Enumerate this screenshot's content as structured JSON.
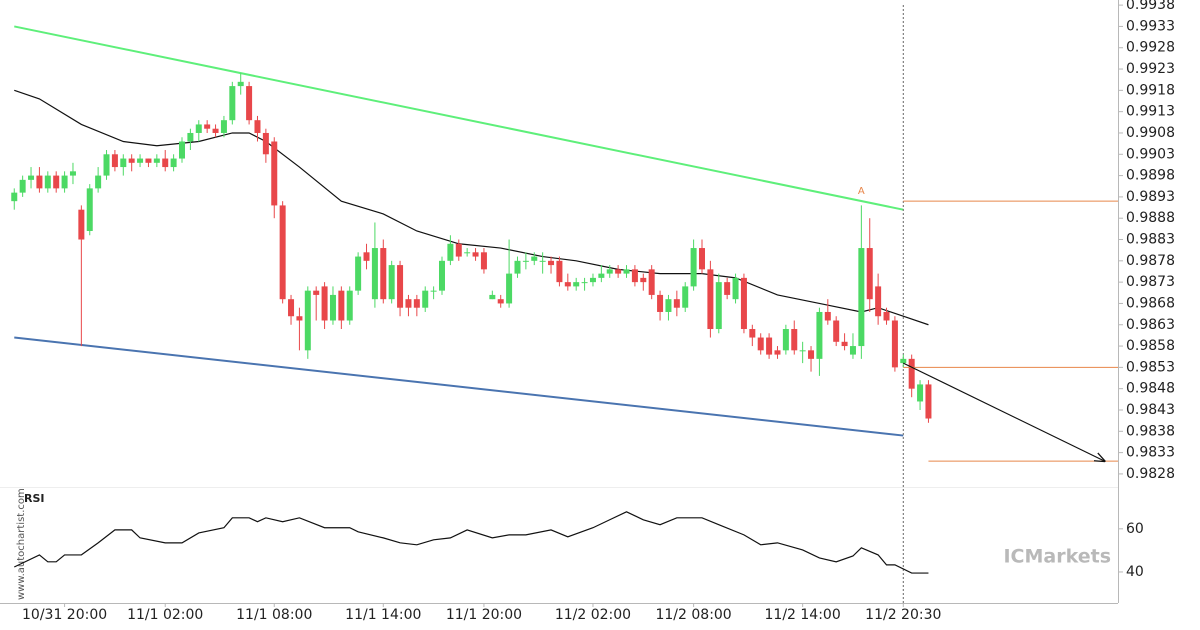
{
  "chart_data": [
    {
      "type": "candlestick",
      "xlim": [
        -1.7,
        131.6
      ],
      "ylim": [
        0.98254,
        0.99392
      ],
      "yticks": [
        0.9938,
        0.9933,
        0.9928,
        0.9923,
        0.9918,
        0.9913,
        0.9908,
        0.9903,
        0.9898,
        0.9893,
        0.9888,
        0.9883,
        0.9878,
        0.9873,
        0.9868,
        0.9863,
        0.9858,
        0.9853,
        0.9848,
        0.9843,
        0.9838,
        0.9833,
        0.9828
      ],
      "up_color": "#4cd964",
      "down_color": "#e8474a",
      "open": [
        0.9892,
        0.9894,
        0.9897,
        0.9898,
        0.9895,
        0.9898,
        0.9895,
        0.9898,
        0.989,
        0.9885,
        0.9895,
        0.9898,
        0.9903,
        0.99,
        0.9902,
        0.9901,
        0.9902,
        0.9901,
        0.9902,
        0.99,
        0.9902,
        0.9906,
        0.9908,
        0.991,
        0.9909,
        0.9908,
        0.9911,
        0.9919,
        0.9919,
        0.9911,
        0.9908,
        0.9906,
        0.9891,
        0.9869,
        0.9865,
        0.9857,
        0.9871,
        0.9872,
        0.9864,
        0.9871,
        0.9864,
        0.9871,
        0.988,
        0.9869,
        0.9881,
        0.9869,
        0.9877,
        0.9869,
        0.9869,
        0.9867,
        0.9871,
        0.9871,
        0.9878,
        0.9882,
        0.988,
        0.988,
        0.988,
        0.9869,
        0.9869,
        0.9868,
        0.9875,
        0.9878,
        0.9878,
        0.9878,
        0.9878,
        0.9878,
        0.9873,
        0.9872,
        0.9873,
        0.9873,
        0.9874,
        0.9875,
        0.9876,
        0.9875,
        0.9876,
        0.9874,
        0.9876,
        0.987,
        0.9866,
        0.9869,
        0.9867,
        0.9872,
        0.9881,
        0.9876,
        0.9862,
        0.9873,
        0.9869,
        0.9874,
        0.9862,
        0.986,
        0.986,
        0.9857,
        0.9857,
        0.9862,
        0.9857,
        0.9857,
        0.9855,
        0.9866,
        0.9864,
        0.9859,
        0.9856,
        0.9858,
        0.9881,
        0.9872,
        0.9866,
        0.9864,
        0.9854,
        0.9855,
        0.9845,
        0.9849
      ],
      "high": [
        0.9895,
        0.9898,
        0.99,
        0.99,
        0.9899,
        0.9899,
        0.9899,
        0.9901,
        0.9891,
        0.9896,
        0.99,
        0.9904,
        0.9904,
        0.9903,
        0.9903,
        0.9903,
        0.9902,
        0.9903,
        0.9904,
        0.9903,
        0.9907,
        0.9909,
        0.9911,
        0.9911,
        0.991,
        0.9912,
        0.992,
        0.9922,
        0.992,
        0.9912,
        0.9909,
        0.9907,
        0.9892,
        0.987,
        0.9867,
        0.9872,
        0.9872,
        0.9873,
        0.9872,
        0.9872,
        0.9872,
        0.988,
        0.9882,
        0.9887,
        0.9883,
        0.9878,
        0.9878,
        0.987,
        0.987,
        0.9872,
        0.9872,
        0.9879,
        0.9884,
        0.9883,
        0.9881,
        0.9881,
        0.9881,
        0.9871,
        0.987,
        0.9883,
        0.9879,
        0.988,
        0.988,
        0.988,
        0.9879,
        0.9879,
        0.9875,
        0.9874,
        0.9874,
        0.9875,
        0.9877,
        0.9877,
        0.9877,
        0.9877,
        0.9877,
        0.9875,
        0.9877,
        0.9871,
        0.987,
        0.9871,
        0.9873,
        0.9883,
        0.9883,
        0.9878,
        0.9875,
        0.9874,
        0.9875,
        0.9875,
        0.9863,
        0.9861,
        0.9861,
        0.9858,
        0.9863,
        0.9864,
        0.9859,
        0.9858,
        0.9867,
        0.9869,
        0.9865,
        0.9861,
        0.9861,
        0.9891,
        0.9888,
        0.9875,
        0.9867,
        0.9865,
        0.9856,
        0.9856,
        0.985,
        0.985
      ],
      "low": [
        0.989,
        0.9893,
        0.9895,
        0.9894,
        0.9894,
        0.9894,
        0.9894,
        0.9896,
        0.9858,
        0.9884,
        0.9894,
        0.9897,
        0.9899,
        0.9898,
        0.9899,
        0.99,
        0.99,
        0.99,
        0.9899,
        0.9899,
        0.9901,
        0.9904,
        0.9906,
        0.9908,
        0.9907,
        0.9907,
        0.991,
        0.9917,
        0.991,
        0.9906,
        0.9901,
        0.9888,
        0.9868,
        0.9863,
        0.9857,
        0.9855,
        0.9864,
        0.9862,
        0.9863,
        0.9862,
        0.9863,
        0.987,
        0.9876,
        0.9867,
        0.9868,
        0.9868,
        0.9865,
        0.9865,
        0.9865,
        0.9866,
        0.9869,
        0.987,
        0.9877,
        0.9878,
        0.9879,
        0.9878,
        0.9875,
        0.9869,
        0.9867,
        0.9867,
        0.9874,
        0.9876,
        0.9877,
        0.9875,
        0.9875,
        0.9872,
        0.9871,
        0.9871,
        0.9871,
        0.9872,
        0.9873,
        0.9874,
        0.9874,
        0.9874,
        0.9872,
        0.9871,
        0.9869,
        0.9864,
        0.9864,
        0.9865,
        0.9866,
        0.9871,
        0.9875,
        0.986,
        0.9861,
        0.9869,
        0.9868,
        0.9861,
        0.9858,
        0.9856,
        0.9855,
        0.9855,
        0.9856,
        0.9856,
        0.9854,
        0.9852,
        0.9851,
        0.9863,
        0.9858,
        0.9857,
        0.9855,
        0.9855,
        0.9866,
        0.9863,
        0.9863,
        0.9852,
        0.9853,
        0.9846,
        0.9843,
        0.984
      ],
      "close": [
        0.9894,
        0.9897,
        0.9898,
        0.9895,
        0.9898,
        0.9895,
        0.9898,
        0.9899,
        0.9883,
        0.9895,
        0.9898,
        0.9903,
        0.99,
        0.9902,
        0.9901,
        0.9902,
        0.9901,
        0.9902,
        0.99,
        0.9902,
        0.9906,
        0.9908,
        0.991,
        0.9909,
        0.9908,
        0.9911,
        0.9919,
        0.992,
        0.9911,
        0.9908,
        0.9903,
        0.9891,
        0.9869,
        0.9865,
        0.9864,
        0.9871,
        0.987,
        0.9864,
        0.987,
        0.9864,
        0.9871,
        0.9879,
        0.9878,
        0.9881,
        0.9869,
        0.9877,
        0.9867,
        0.9867,
        0.9867,
        0.9871,
        0.9871,
        0.9878,
        0.9882,
        0.9879,
        0.988,
        0.9879,
        0.9876,
        0.987,
        0.9868,
        0.9875,
        0.9878,
        0.9878,
        0.9879,
        0.9878,
        0.9877,
        0.9873,
        0.9872,
        0.9873,
        0.9873,
        0.9874,
        0.9875,
        0.9876,
        0.9875,
        0.9876,
        0.9873,
        0.9873,
        0.987,
        0.9866,
        0.9869,
        0.9867,
        0.9872,
        0.9881,
        0.9876,
        0.9862,
        0.9873,
        0.987,
        0.9874,
        0.9862,
        0.986,
        0.9857,
        0.9856,
        0.9856,
        0.9862,
        0.9857,
        0.9857,
        0.9855,
        0.9866,
        0.9864,
        0.9859,
        0.9858,
        0.9858,
        0.9881,
        0.9869,
        0.9865,
        0.9864,
        0.9853,
        0.9855,
        0.9848,
        0.9849,
        0.9841
      ],
      "moving_average": {
        "color": "#111111",
        "x": [
          0,
          3,
          8,
          13,
          17,
          22,
          26,
          28,
          30,
          34,
          39,
          44,
          48,
          53,
          58,
          63,
          67,
          72,
          77,
          82,
          86,
          91,
          96,
          101,
          103,
          106,
          109
        ],
        "values": [
          0.9918,
          0.9916,
          0.991,
          0.9906,
          0.9905,
          0.9906,
          0.9908,
          0.9908,
          0.9906,
          0.99,
          0.9892,
          0.9889,
          0.9885,
          0.9882,
          0.9881,
          0.9879,
          0.9878,
          0.9876,
          0.9875,
          0.9875,
          0.9874,
          0.987,
          0.9868,
          0.9866,
          0.9867,
          0.9865,
          0.9863
        ]
      },
      "trend_lines": [
        {
          "color": "#5eef7a",
          "x": [
            0,
            106
          ],
          "values": [
            0.9933,
            0.989
          ]
        },
        {
          "color": "#4a74b0",
          "x": [
            0,
            106
          ],
          "values": [
            0.986,
            0.9837
          ]
        }
      ],
      "forecast": {
        "color": "#111111",
        "x": [
          106,
          130
        ],
        "values": [
          0.9854,
          0.9831
        ]
      },
      "levels": [
        {
          "color": "#e8864a",
          "x": 106,
          "value": 0.9892
        },
        {
          "color": "#e8864a",
          "x": 106,
          "value": 0.9853
        },
        {
          "color": "#e8864a",
          "x": 109,
          "value": 0.9831
        }
      ],
      "annotations": [
        {
          "text": "A",
          "x": 101,
          "value": 0.9893,
          "color": "#e8864a"
        }
      ],
      "marker_x": 106
    },
    {
      "type": "line",
      "title": "RSI",
      "color": "#111111",
      "xlim": [
        -1.7,
        131.6
      ],
      "ylim": [
        27,
        78
      ],
      "yticks": [
        60,
        40
      ],
      "xticks": [
        {
          "value": 6,
          "label": "10/31 20:00"
        },
        {
          "value": 18,
          "label": "11/1 02:00"
        },
        {
          "value": 31,
          "label": "11/1 08:00"
        },
        {
          "value": 44,
          "label": "11/1 14:00"
        },
        {
          "value": 56,
          "label": "11/1 20:00"
        },
        {
          "value": 69,
          "label": "11/2 02:00"
        },
        {
          "value": 81,
          "label": "11/2 08:00"
        },
        {
          "value": 94,
          "label": "11/2 14:00"
        },
        {
          "value": 106,
          "label": "11/2 20:30"
        }
      ],
      "x": [
        0,
        3,
        4,
        5,
        6,
        8,
        10,
        12,
        14,
        15,
        18,
        20,
        22,
        25,
        26,
        28,
        29,
        30,
        32,
        34,
        37,
        40,
        41,
        44,
        46,
        48,
        50,
        52,
        54,
        57,
        59,
        61,
        64,
        66,
        69,
        71,
        73,
        75,
        77,
        79,
        82,
        84,
        87,
        89,
        91,
        94,
        96,
        98,
        100,
        101,
        103,
        104,
        105,
        107,
        109
      ],
      "values": [
        42.3,
        47.9,
        44.7,
        44.7,
        47.9,
        47.9,
        53.5,
        59.5,
        59.5,
        55.8,
        53.5,
        53.5,
        58.1,
        60.5,
        65.1,
        65.1,
        63.3,
        65.1,
        63.3,
        65.1,
        60.5,
        60.5,
        58.6,
        55.8,
        53.5,
        52.6,
        54.9,
        55.8,
        59.5,
        55.8,
        57.2,
        57.2,
        59.5,
        56.3,
        60.5,
        64.2,
        67.9,
        64.2,
        61.9,
        65.1,
        65.1,
        61.9,
        57.2,
        52.6,
        53.5,
        50.2,
        46.5,
        44.7,
        47.4,
        51.2,
        47.9,
        43.3,
        43.3,
        39.5,
        39.5
      ]
    }
  ],
  "watermark": "www.autochartist.com",
  "logo": "ICMarkets"
}
